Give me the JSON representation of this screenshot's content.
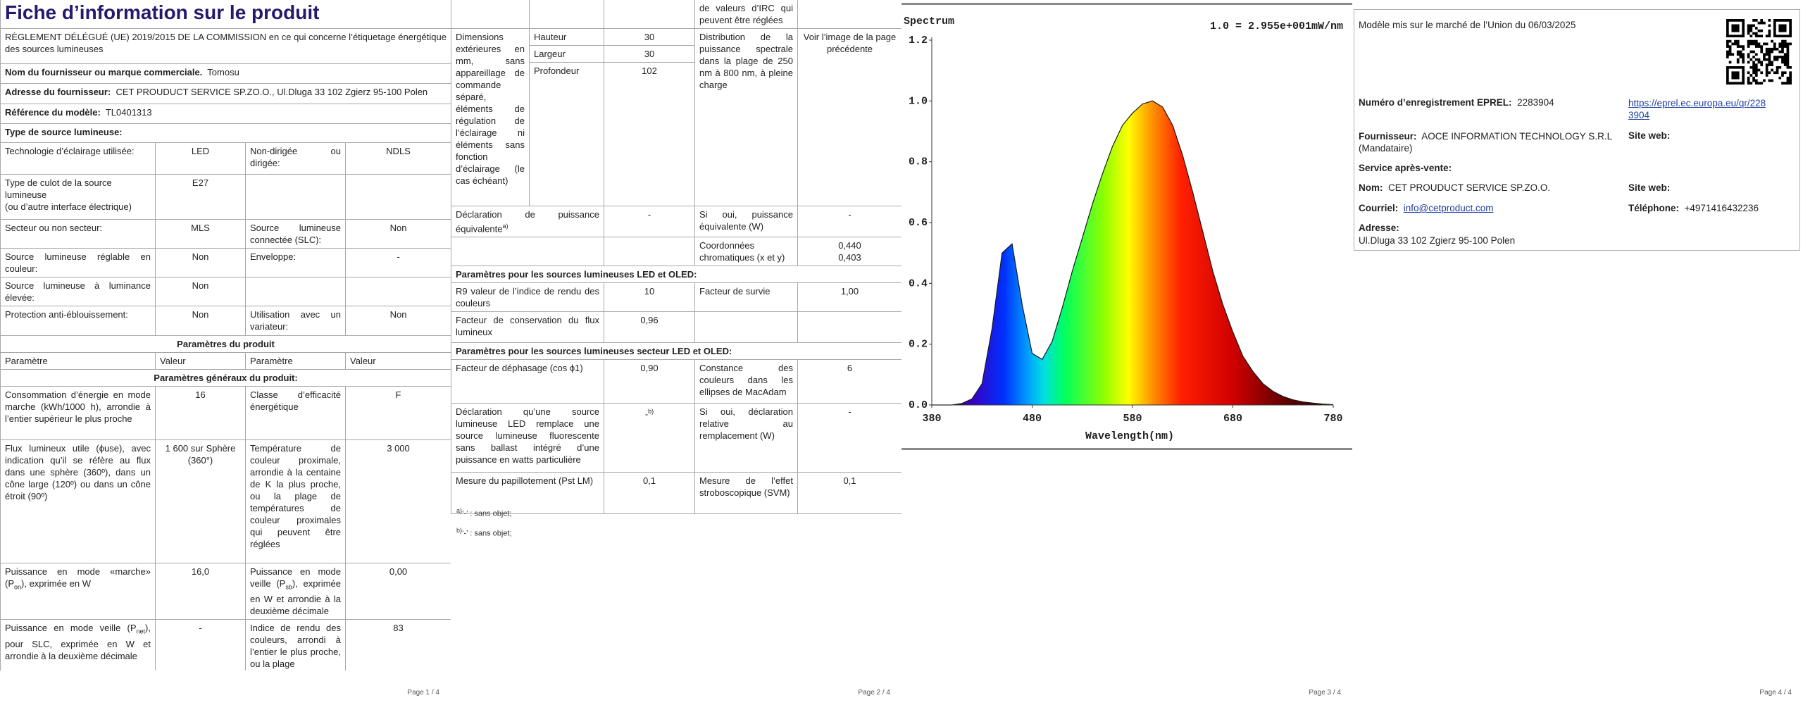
{
  "pages": [
    {
      "title": "Fiche d’information sur le produit",
      "regulation": "RÈGLEMENT DÉLÉGUÉ (UE) 2019/2015 DE LA COMMISSION en ce qui concerne l’étiquetage énergétique des sources lumineuses",
      "info": [
        [
          "Nom du fournisseur ou marque commerciale.",
          "Tomosu"
        ],
        [
          "Adresse du fournisseur:",
          "CET PROUDUCT SERVICE SP.ZO.O., Ul.Dluga 33 102 Zgierz 95-100 Polen"
        ],
        [
          "Référence du modèle:",
          "TL0401313"
        ]
      ],
      "source_heading": "Type de source lumineuse:",
      "source_rows": [
        [
          "Technologie d’éclairage utilisée:",
          "LED",
          "Non-dirigée ou dirigée:",
          "NDLS"
        ],
        [
          "Type de culot de la source lumineuse",
          "(ou d’autre interface électrique)",
          "E27"
        ],
        [
          "Secteur ou non secteur:",
          "MLS",
          "Source lumineuse connectée (SLC):",
          "Non"
        ],
        [
          "Source lumineuse réglable en couleur:",
          "Non",
          "Enveloppe:",
          "-"
        ],
        [
          "Source lumineuse à luminance élevée:",
          "Non"
        ],
        [
          "Protection anti-éblouissement:",
          "Non",
          "Utilisation avec un variateur:",
          "Non"
        ]
      ],
      "params_heading": "Paramètres du produit",
      "columns": [
        "Paramètre",
        "Valeur",
        "Paramètre",
        "Valeur"
      ],
      "general_heading": "Paramètres généraux du produit:",
      "general_rows": [
        [
          "Consommation d’énergie en mode marche (kWh/1000 h), arrondie à l’entier supérieur le plus proche",
          "16",
          "Classe d’efficacité énergétique",
          "F"
        ],
        [
          "Flux lumineux utile (ϕuse), avec indication qu’il se réfère au flux dans une sphère (360º), dans un cône large (120º) ou dans un cône étroit (90º)",
          "1 600 sur Sphère (360°)",
          "Température de couleur proximale, arrondie à la centaine de K la plus proche, ou la plage de températures de couleur proximales qui peuvent être réglées",
          "3 000"
        ],
        [
          [
            "Puissance en mode «marche» (P",
            "on",
            "), exprimée en W"
          ],
          "16,0",
          [
            "Puissance en mode veille (P",
            "sb",
            "), exprimée en W et arrondie à la deuxième décimale"
          ],
          "0,00"
        ],
        [
          [
            "Puissance en mode veille (P",
            "net",
            "), pour SLC, exprimée en W et arrondie à la deuxième décimale"
          ],
          "-",
          "Indice de rendu des couleurs, arrondi à l’entier le plus proche, ou la plage",
          "83"
        ]
      ],
      "footer": "Page 1 / 4"
    },
    {
      "cri_continued": "de valeurs d’IRC qui peuvent être réglées",
      "dimensions": {
        "label": "Dimensions extérieures en mm, sans appareillage de commande séparé, éléments de régulation de l’éclairage ni éléments sans fonction d’éclairage (le cas échéant)",
        "items": [
          [
            "Hauteur",
            "30"
          ],
          [
            "Largeur",
            "30"
          ],
          [
            "Profondeur",
            "102"
          ]
        ]
      },
      "spectral": [
        "Distribution de la puissance spectrale dans la plage de 250 nm à 800 nm, à pleine charge",
        "Voir l’image de la page précédente"
      ],
      "equivalent": [
        "Déclaration de puissance équivalente",
        "a)",
        "-",
        "Si oui, puissance équivalente (W)",
        "-"
      ],
      "chromaticity": [
        "Coordonnées chromatiques (x et y)",
        "0,440",
        "0,403"
      ],
      "led_heading": "Paramètres pour les sources lumineuses LED et OLED:",
      "led_rows": [
        [
          "R9 valeur de l’indice de rendu des couleurs",
          "10",
          "Facteur de survie",
          "1,00"
        ],
        [
          "Facteur de conservation du flux lumineux",
          "0,96"
        ]
      ],
      "mains_heading": "Paramètres pour les sources lumineuses secteur LED et OLED:",
      "mains_rows": [
        [
          "Facteur de déphasage (cos ϕ1)",
          "0,90",
          "Constance des couleurs dans les ellipses de MacAdam",
          "6"
        ],
        [
          "Déclaration qu’une source lumineuse LED remplace une source lumineuse fluorescente sans ballast intégré d’une puissance en watts particulière",
          "-",
          "b)",
          "Si oui, déclaration relative au remplacement (W)",
          "-"
        ],
        [
          "Mesure du papillotement (Pst LM)",
          "0,1",
          "Mesure de l’effet stroboscopique (SVM)",
          "0,1"
        ]
      ],
      "footnotes": [
        [
          "a)",
          "‘-’ : sans objet;"
        ],
        [
          "b)",
          "‘-’ : sans objet;"
        ]
      ],
      "footer": "Page 2 / 4"
    },
    {
      "spectrum": {
        "type": "area",
        "title": "Spectrum",
        "annotation": "1.0 = 2.955e+001mW/nm",
        "xlabel": "Wavelength(nm)",
        "xlim": [
          380,
          780
        ],
        "ylim": [
          0,
          1.2
        ],
        "xticks": [
          380,
          480,
          580,
          680,
          780
        ],
        "yticks": [
          {
            "value": 0,
            "label": "0.0"
          },
          0.2,
          0.4,
          0.6,
          0.8,
          {
            "value": 1,
            "label": "1.0"
          },
          1.2
        ],
        "x": [
          380,
          390,
          400,
          410,
          420,
          430,
          440,
          450,
          460,
          470,
          480,
          490,
          500,
          510,
          520,
          530,
          540,
          550,
          560,
          570,
          580,
          590,
          600,
          610,
          620,
          630,
          640,
          650,
          660,
          670,
          680,
          690,
          700,
          710,
          720,
          730,
          740,
          750,
          760,
          770,
          780
        ],
        "values": [
          0,
          0,
          0,
          0.005,
          0.02,
          0.07,
          0.25,
          0.5,
          0.53,
          0.33,
          0.17,
          0.15,
          0.21,
          0.32,
          0.44,
          0.55,
          0.66,
          0.76,
          0.85,
          0.92,
          0.96,
          0.99,
          1.0,
          0.98,
          0.92,
          0.82,
          0.7,
          0.57,
          0.44,
          0.33,
          0.24,
          0.16,
          0.11,
          0.07,
          0.045,
          0.028,
          0.017,
          0.01,
          0.006,
          0.003,
          0.001
        ]
      },
      "footer": "Page 3 / 4"
    },
    {
      "placed_on_market": "Modèle mis sur le marché de l’Union du 06/03/2025",
      "eprel": {
        "label": "Numéro d’enregistrement EPREL:",
        "value": "2283904",
        "link": "https://eprel.ec.europa.eu/qr/2283904"
      },
      "supplier": {
        "label": "Fournisseur:",
        "value": "AOCE INFORMATION TECHNOLOGY S.R.L (Mandataire)",
        "website_label": "Site web:"
      },
      "service": {
        "heading": "Service après-vente:",
        "name_label": "Nom:",
        "name": "CET PROUDUCT SERVICE SP.ZO.O.",
        "website_label": "Site web:",
        "email_label": "Courriel:",
        "email": "info@cetproduct.com",
        "phone_label": "Téléphone:",
        "phone": "+4971416432236",
        "address_label": "Adresse:",
        "address": "Ul.Dluga 33 102 Zgierz 95-100 Polen"
      },
      "footer": "Page 4 / 4"
    }
  ]
}
